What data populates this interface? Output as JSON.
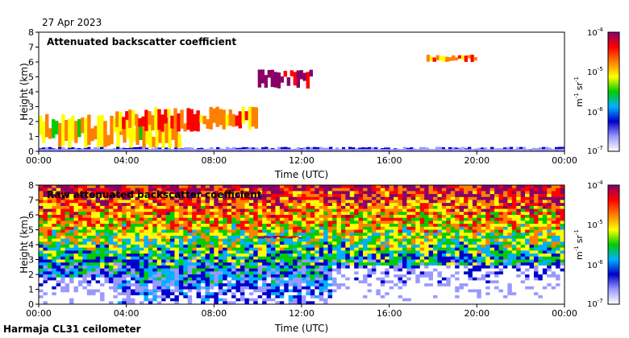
{
  "header": {
    "date": "27 Apr 2023"
  },
  "footer": {
    "station": "Harmaja CL31 ceilometer"
  },
  "colorbar": {
    "ticks": [
      {
        "base": "10",
        "exp": "-4"
      },
      {
        "base": "10",
        "exp": "-5"
      },
      {
        "base": "10",
        "exp": "-6"
      },
      {
        "base": "10",
        "exp": "-7"
      }
    ],
    "unit": {
      "m": "m",
      "m_exp": "-1",
      "sr": "sr",
      "sr_exp": "-1"
    },
    "colors": [
      "#ffffff",
      "#9999ff",
      "#0000cc",
      "#00b0ff",
      "#00cc00",
      "#ffff00",
      "#ff8000",
      "#ff0000",
      "#880066"
    ]
  },
  "chart_data": [
    {
      "type": "heatmap",
      "title": "Attenuated backscatter coefficient",
      "xlabel": "Time (UTC)",
      "ylabel": "Height (km)",
      "x_ticks": [
        "00:00",
        "04:00",
        "08:00",
        "12:00",
        "16:00",
        "20:00",
        "00:00"
      ],
      "y_ticks": [
        "0",
        "1",
        "2",
        "3",
        "4",
        "5",
        "6",
        "7",
        "8"
      ],
      "xlim": [
        "00:00",
        "24:00"
      ],
      "ylim": [
        0,
        8
      ],
      "color_scale": "log",
      "color_range": [
        1e-07,
        0.0001
      ],
      "features": [
        {
          "name": "surface layer",
          "time_start": 0,
          "time_end": 24,
          "height_top": 0.3,
          "value": 3e-07
        },
        {
          "name": "low clouds",
          "time_start": 0,
          "time_end": 6.5,
          "height_bottom": 0.2,
          "height_top": 2.5,
          "value": 1e-05
        },
        {
          "name": "mid layer",
          "time_start": 3.5,
          "time_end": 10,
          "height_bottom": 1.3,
          "height_top": 3,
          "value": 2e-05
        },
        {
          "name": "elevated layer",
          "time_start": 10,
          "time_end": 12.5,
          "height_bottom": 4.2,
          "height_top": 5.5,
          "value": 0.0001
        },
        {
          "name": "high cloud",
          "time_start": 17.7,
          "time_end": 20,
          "height_bottom": 6.0,
          "height_top": 6.5,
          "value": 2e-05
        }
      ]
    },
    {
      "type": "heatmap",
      "title": "Raw attenuated backscatter coefficient",
      "xlabel": "Time (UTC)",
      "ylabel": "Height (km)",
      "x_ticks": [
        "00:00",
        "04:00",
        "08:00",
        "12:00",
        "16:00",
        "20:00",
        "00:00"
      ],
      "y_ticks": [
        "0",
        "1",
        "2",
        "3",
        "4",
        "5",
        "6",
        "7",
        "8"
      ],
      "xlim": [
        "00:00",
        "24:00"
      ],
      "ylim": [
        0,
        8
      ],
      "color_scale": "log",
      "color_range": [
        1e-07,
        0.0001
      ],
      "features": [
        {
          "name": "noise background",
          "time_start": 0,
          "time_end": 24,
          "height_bottom": 0,
          "height_top": 8,
          "value": 1e-06
        },
        {
          "name": "elevated layer",
          "time_start": 10,
          "time_end": 12,
          "height_bottom": 4.4,
          "height_top": 4.6,
          "value": 0.0001
        }
      ]
    }
  ]
}
